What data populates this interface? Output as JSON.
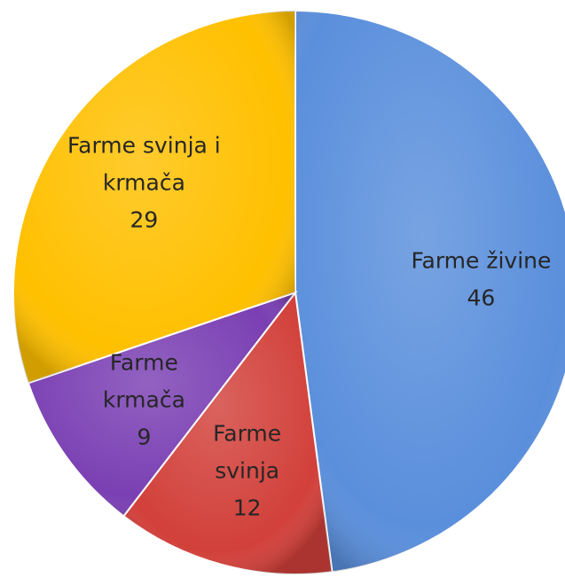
{
  "chart_data": {
    "type": "pie",
    "categories": [
      "Farme živine",
      "Farme svinja",
      "Farme krmača",
      "Farme svinja i krmača"
    ],
    "values": [
      46,
      12,
      9,
      29
    ],
    "colors": [
      "#5a8fdc",
      "#d2403a",
      "#7a3fb3",
      "#ffc000"
    ]
  }
}
